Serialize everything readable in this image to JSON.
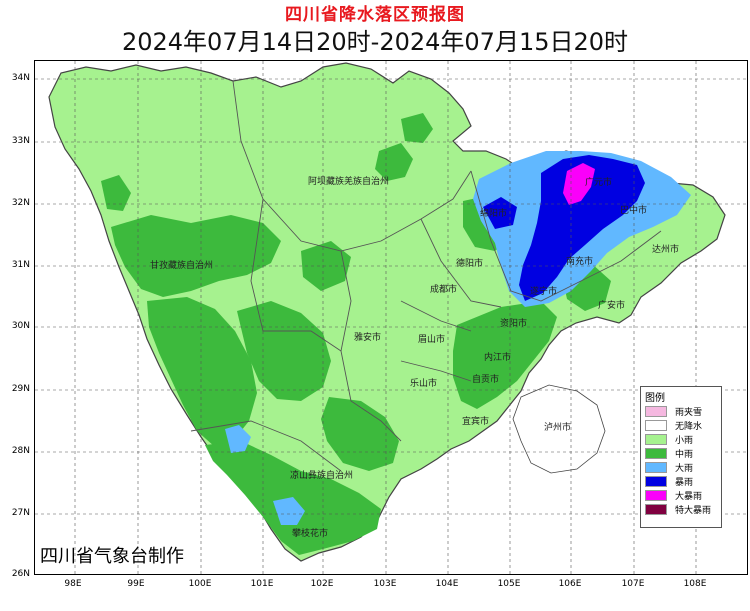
{
  "header": {
    "title": "四川省降水落区预报图",
    "subtitle": "2024年07月14日20时-2024年07月15日20时"
  },
  "axes": {
    "lat_ticks": [
      "34N",
      "33N",
      "32N",
      "31N",
      "30N",
      "29N",
      "28N",
      "27N",
      "26N"
    ],
    "lon_ticks": [
      "98E",
      "99E",
      "100E",
      "101E",
      "102E",
      "103E",
      "104E",
      "105E",
      "106E",
      "107E",
      "108E"
    ]
  },
  "regions": [
    "阿坝藏族羌族自治州",
    "甘孜藏族自治州",
    "凉山彝族自治州",
    "成都市",
    "德阳市",
    "绵阳市",
    "广元市",
    "巴中市",
    "南充市",
    "达州市",
    "广安市",
    "遂宁市",
    "资阳市",
    "内江市",
    "自贡市",
    "宜宾市",
    "泸州市",
    "眉山市",
    "乐山市",
    "雅安市",
    "攀枝花市"
  ],
  "legend": {
    "title": "图例",
    "items": [
      {
        "label": "雨夹雪",
        "color": "#f5b8e0"
      },
      {
        "label": "无降水",
        "color": "#ffffff"
      },
      {
        "label": "小雨",
        "color": "#a6f28f"
      },
      {
        "label": "中雨",
        "color": "#3dba3d"
      },
      {
        "label": "大雨",
        "color": "#61b8ff"
      },
      {
        "label": "暴雨",
        "color": "#0000e1"
      },
      {
        "label": "大暴雨",
        "color": "#fa00fa"
      },
      {
        "label": "特大暴雨",
        "color": "#800040"
      }
    ]
  },
  "footer": {
    "producer": "四川省气象台制作"
  }
}
